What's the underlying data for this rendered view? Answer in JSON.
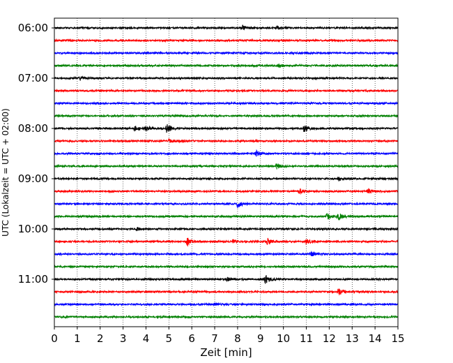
{
  "chart_data": {
    "type": "line",
    "xlabel": "Zeit  [min]",
    "ylabel": "UTC (Lokalzeit = UTC + 02:00)",
    "xlim": [
      0,
      15
    ],
    "ylim_rows": [
      0,
      24
    ],
    "x_ticks": [
      0,
      1,
      2,
      3,
      4,
      5,
      6,
      7,
      8,
      9,
      10,
      11,
      12,
      13,
      14,
      15
    ],
    "y_tick_labels": [
      "06:00",
      "07:00",
      "08:00",
      "09:00",
      "10:00",
      "11:00"
    ],
    "y_tick_rows": [
      0,
      4,
      8,
      12,
      16,
      20
    ],
    "grid": "vertical dotted",
    "color_cycle": [
      "#000000",
      "#ff0000",
      "#0000ff",
      "#008000"
    ],
    "traces": [
      {
        "start": "06:00",
        "color": "#000000",
        "events": [
          {
            "t": 8.2,
            "amp": 0.9
          },
          {
            "t": 9.7,
            "amp": 0.6
          }
        ]
      },
      {
        "start": "06:15",
        "color": "#ff0000",
        "events": []
      },
      {
        "start": "06:30",
        "color": "#0000ff",
        "events": []
      },
      {
        "start": "06:45",
        "color": "#008000",
        "events": [
          {
            "t": 9.8,
            "amp": 0.5
          }
        ]
      },
      {
        "start": "07:00",
        "color": "#000000",
        "events": [
          {
            "t": 1.1,
            "amp": 0.6
          }
        ]
      },
      {
        "start": "07:15",
        "color": "#ff0000",
        "events": []
      },
      {
        "start": "07:30",
        "color": "#0000ff",
        "events": []
      },
      {
        "start": "07:45",
        "color": "#008000",
        "events": []
      },
      {
        "start": "08:00",
        "color": "#000000",
        "events": [
          {
            "t": 3.5,
            "amp": 0.9
          },
          {
            "t": 4.0,
            "amp": 0.8
          },
          {
            "t": 4.9,
            "amp": 1.6
          },
          {
            "t": 10.9,
            "amp": 1.3
          }
        ]
      },
      {
        "start": "08:15",
        "color": "#ff0000",
        "events": [
          {
            "t": 5.0,
            "amp": 0.6
          },
          {
            "t": 5.5,
            "amp": 0.5
          }
        ]
      },
      {
        "start": "08:30",
        "color": "#0000ff",
        "events": [
          {
            "t": 8.8,
            "amp": 1.0
          }
        ]
      },
      {
        "start": "08:45",
        "color": "#008000",
        "events": [
          {
            "t": 9.7,
            "amp": 1.0
          }
        ]
      },
      {
        "start": "09:00",
        "color": "#000000",
        "events": [
          {
            "t": 12.4,
            "amp": 0.8
          }
        ]
      },
      {
        "start": "09:15",
        "color": "#ff0000",
        "events": [
          {
            "t": 10.7,
            "amp": 0.8
          },
          {
            "t": 13.7,
            "amp": 1.0
          }
        ]
      },
      {
        "start": "09:30",
        "color": "#0000ff",
        "events": [
          {
            "t": 8.0,
            "amp": 1.4
          }
        ]
      },
      {
        "start": "09:45",
        "color": "#008000",
        "events": [
          {
            "t": 11.9,
            "amp": 1.1
          },
          {
            "t": 12.4,
            "amp": 1.2
          }
        ]
      },
      {
        "start": "10:00",
        "color": "#000000",
        "events": [
          {
            "t": 3.6,
            "amp": 0.5
          }
        ]
      },
      {
        "start": "10:15",
        "color": "#ff0000",
        "events": [
          {
            "t": 5.8,
            "amp": 1.4
          },
          {
            "t": 7.8,
            "amp": 0.6
          },
          {
            "t": 9.3,
            "amp": 1.3
          },
          {
            "t": 11.0,
            "amp": 0.8
          }
        ]
      },
      {
        "start": "10:30",
        "color": "#0000ff",
        "events": [
          {
            "t": 11.2,
            "amp": 0.9
          }
        ]
      },
      {
        "start": "10:45",
        "color": "#008000",
        "events": []
      },
      {
        "start": "11:00",
        "color": "#000000",
        "events": [
          {
            "t": 7.5,
            "amp": 0.6
          },
          {
            "t": 9.2,
            "amp": 1.6
          }
        ]
      },
      {
        "start": "11:15",
        "color": "#ff0000",
        "events": [
          {
            "t": 12.4,
            "amp": 1.3
          }
        ]
      },
      {
        "start": "11:30",
        "color": "#0000ff",
        "events": [
          {
            "t": 7.0,
            "amp": 0.5
          }
        ]
      },
      {
        "start": "11:45",
        "color": "#008000",
        "events": []
      }
    ]
  }
}
